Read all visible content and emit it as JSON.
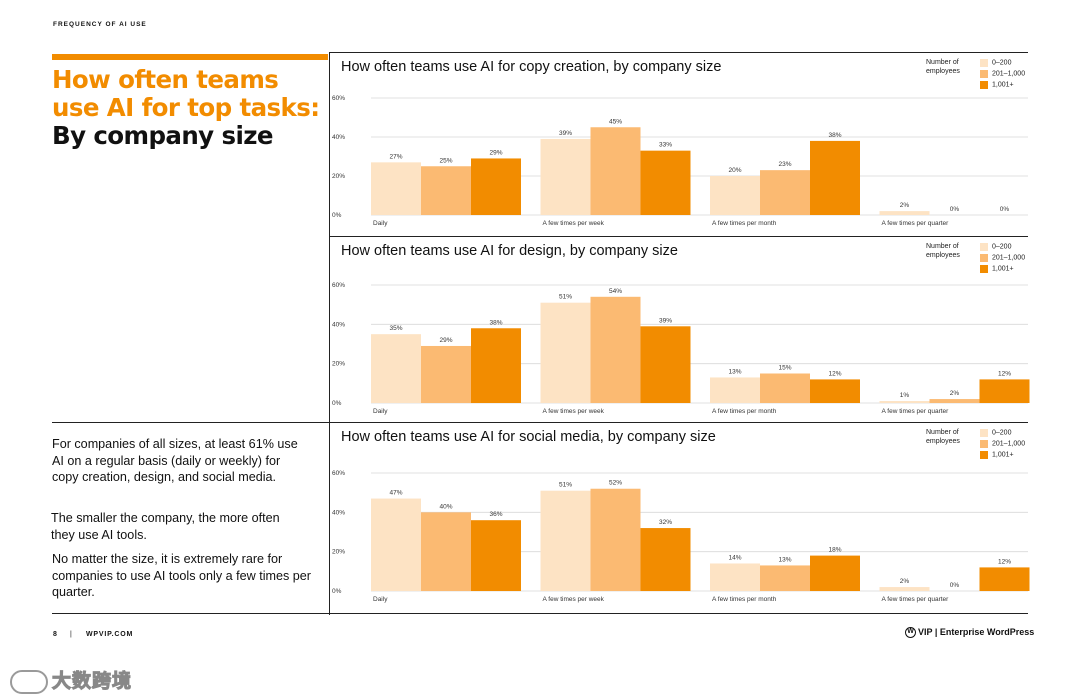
{
  "header": {
    "kicker": "FREQUENCY OF AI USE"
  },
  "title": {
    "line1": "How often teams",
    "line2": "use AI for top tasks:",
    "line3": "By company size"
  },
  "sidebar": {
    "paragraphs": [
      "For companies of all sizes, at least 61% use AI on a regular basis (daily or weekly) for copy creation, design, and social media.",
      "The smaller the company, the more often they use AI tools.",
      "No matter the size, it is extremely rare for companies to use AI tools only a few times per quarter."
    ]
  },
  "colors": {
    "accent": "#f28c00",
    "series": [
      "#fde3c4",
      "#fbba72",
      "#f28c00"
    ],
    "grid": "#d9d9d9"
  },
  "chart_data": [
    {
      "type": "bar",
      "title": "How often teams use AI for copy creation, by company size",
      "legend_title": "Number of employees",
      "categories": [
        "Daily",
        "A few times per week",
        "A few times per month",
        "A few times per quarter"
      ],
      "series": [
        {
          "name": "0–200",
          "values": [
            27,
            39,
            20,
            2
          ]
        },
        {
          "name": "201–1,000",
          "values": [
            25,
            45,
            23,
            0
          ]
        },
        {
          "name": "1,001+",
          "values": [
            29,
            33,
            38,
            0
          ]
        }
      ],
      "ylim": [
        0,
        60
      ],
      "yticks": [
        "0%",
        "20%",
        "40%",
        "60%"
      ],
      "legend_position": "top-right",
      "grid": true
    },
    {
      "type": "bar",
      "title": "How often teams use AI for design, by company size",
      "legend_title": "Number of employees",
      "categories": [
        "Daily",
        "A few times per week",
        "A few times per month",
        "A few times per quarter"
      ],
      "series": [
        {
          "name": "0–200",
          "values": [
            35,
            51,
            13,
            1
          ]
        },
        {
          "name": "201–1,000",
          "values": [
            29,
            54,
            15,
            2
          ]
        },
        {
          "name": "1,001+",
          "values": [
            38,
            39,
            12,
            12
          ]
        }
      ],
      "ylim": [
        0,
        60
      ],
      "yticks": [
        "0%",
        "20%",
        "40%",
        "60%"
      ],
      "legend_position": "top-right",
      "grid": true
    },
    {
      "type": "bar",
      "title": "How often teams use AI for social media, by company size",
      "legend_title": "Number of employees",
      "categories": [
        "Daily",
        "A few times per week",
        "A few times per month",
        "A few times per quarter"
      ],
      "series": [
        {
          "name": "0–200",
          "values": [
            47,
            51,
            14,
            2
          ]
        },
        {
          "name": "201–1,000",
          "values": [
            40,
            52,
            13,
            0
          ]
        },
        {
          "name": "1,001+",
          "values": [
            36,
            32,
            18,
            12
          ]
        }
      ],
      "ylim": [
        0,
        60
      ],
      "yticks": [
        "0%",
        "20%",
        "40%",
        "60%"
      ],
      "legend_position": "top-right",
      "grid": true
    }
  ],
  "footer": {
    "page": "8",
    "separator": "|",
    "site": "WPVIP.COM",
    "brand": "VIP | Enterprise WordPress"
  },
  "watermark": {
    "text": "大数跨境"
  }
}
